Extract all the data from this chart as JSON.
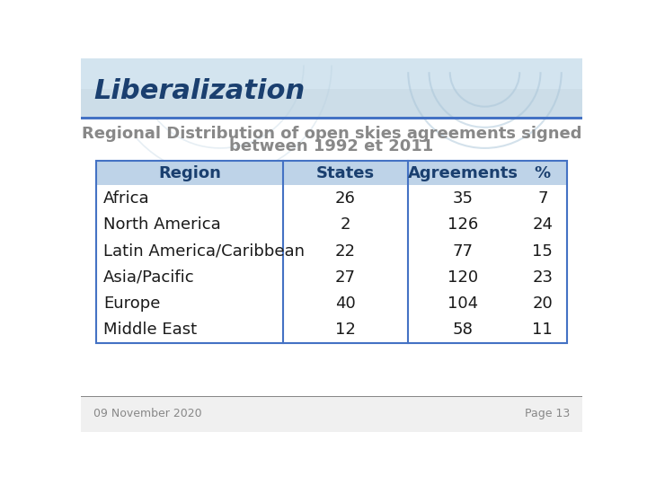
{
  "title": "Liberalization",
  "subtitle_line1": "Regional Distribution of open skies agreements signed",
  "subtitle_line2": "between 1992 et 2011",
  "col_headers": [
    "Region",
    "States",
    "Agreements",
    "%"
  ],
  "rows": [
    [
      "Africa",
      "26",
      "35",
      "7"
    ],
    [
      "North America",
      "2",
      "126",
      "24"
    ],
    [
      "Latin America/Caribbean",
      "22",
      "77",
      "15"
    ],
    [
      "Asia/Pacific",
      "27",
      "120",
      "23"
    ],
    [
      "Europe",
      "40",
      "104",
      "20"
    ],
    [
      "Middle East",
      "12",
      "58",
      "11"
    ]
  ],
  "header_bg": "#bed3e8",
  "header_text_color": "#1a3f6f",
  "row_text_color": "#1a1a1a",
  "title_color": "#1a3f6f",
  "subtitle_color": "#888888",
  "title_bg_color": "#d6e8f5",
  "bg_main_color": "#ffffff",
  "footer_date": "09 November 2020",
  "footer_page": "Page 13",
  "footer_text_color": "#888888",
  "footer_bg_color": "#f0f0f0",
  "footer_divider_color": "#888888",
  "header_divider_color": "#4472c4",
  "col_divider_color": "#4472c4",
  "table_border_color": "#4472c4",
  "title_fontsize": 22,
  "subtitle_fontsize": 13,
  "header_fontsize": 13,
  "row_fontsize": 13,
  "footer_fontsize": 9
}
